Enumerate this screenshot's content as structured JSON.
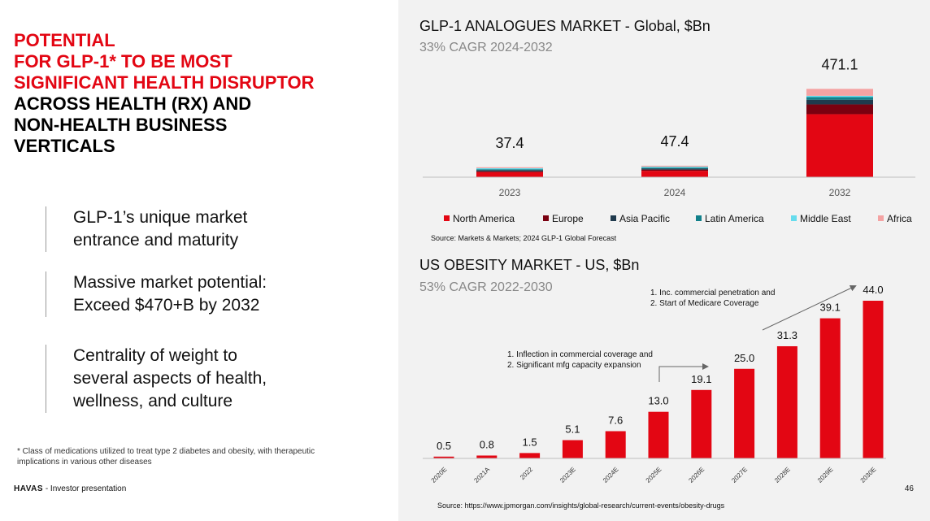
{
  "headline": {
    "red_lines": [
      "POTENTIAL",
      "FOR GLP-1* TO BE MOST",
      "SIGNIFICANT HEALTH DISRUPTOR"
    ],
    "black_lines": [
      "ACROSS HEALTH (RX) AND",
      "NON-HEALTH BUSINESS",
      "VERTICALS"
    ]
  },
  "bullets": [
    {
      "lines": [
        "GLP-1’s unique market",
        "entrance and maturity"
      ]
    },
    {
      "lines": [
        "Massive market potential:",
        "Exceed $470+B by 2032"
      ]
    },
    {
      "lines": [
        "Centrality of weight to",
        "several aspects of health,",
        "wellness, and culture"
      ]
    }
  ],
  "footnote": "* Class of medications utilized to treat type 2 diabetes and obesity, with therapeutic implications in various other diseases",
  "footer": {
    "brand": "HAVAS",
    "label": "- Investor presentation",
    "page": "46"
  },
  "colors": {
    "red": "#e30613",
    "darkred": "#7a0010",
    "navy": "#1f3a4d",
    "teal": "#11808a",
    "cyan": "#66dced",
    "pink": "#f4a3a3"
  },
  "chart_data": [
    {
      "type": "bar",
      "stacked": true,
      "title": "GLP-1 ANALOGUES MARKET - Global, $Bn",
      "subtitle": "33% CAGR 2024-2032",
      "categories": [
        "2023",
        "2024",
        "2032"
      ],
      "totals": [
        37.4,
        47.4,
        471.1
      ],
      "total_labels": [
        "37.4",
        "47.4",
        "471.1"
      ],
      "series": [
        {
          "name": "North America",
          "values": [
            26.9,
            34.1,
            336.0
          ]
        },
        {
          "name": "Europe",
          "values": [
            5.0,
            6.3,
            52.0
          ]
        },
        {
          "name": "Asia Pacific",
          "values": [
            2.5,
            3.2,
            25.0
          ]
        },
        {
          "name": "Latin America",
          "values": [
            1.3,
            1.6,
            14.0
          ]
        },
        {
          "name": "Middle East",
          "values": [
            0.6,
            0.8,
            7.0
          ]
        },
        {
          "name": "Africa",
          "values": [
            1.1,
            1.4,
            37.1
          ]
        }
      ],
      "ylim": [
        0,
        520
      ],
      "source": "Source: Markets & Markets; 2024 GLP-1 Global Forecast"
    },
    {
      "type": "bar",
      "title": "US OBESITY MARKET - US, $Bn",
      "subtitle": "53% CAGR 2022-2030",
      "categories": [
        "2020E",
        "2021A",
        "2022",
        "2023E",
        "2024E",
        "2025E",
        "2026E",
        "2027E",
        "2028E",
        "2029E",
        "2030E"
      ],
      "values": [
        0.5,
        0.8,
        1.5,
        5.1,
        7.6,
        13.0,
        19.1,
        25.0,
        31.3,
        39.1,
        44.0
      ],
      "value_labels": [
        "0.5",
        "0.8",
        "1.5",
        "5.1",
        "7.6",
        "13.0",
        "19.1",
        "25.0",
        "31.3",
        "39.1",
        "44.0"
      ],
      "ylim": [
        0,
        48
      ],
      "annotations": [
        {
          "lines": [
            "1. Inflection in commercial coverage and",
            "2. Significant mfg capacity expansion"
          ]
        },
        {
          "lines": [
            "1. Inc. commercial penetration and",
            "2. Start of Medicare Coverage"
          ]
        }
      ],
      "source": "Source: https://www.jpmorgan.com/insights/global-research/current-events/obesity-drugs"
    }
  ]
}
